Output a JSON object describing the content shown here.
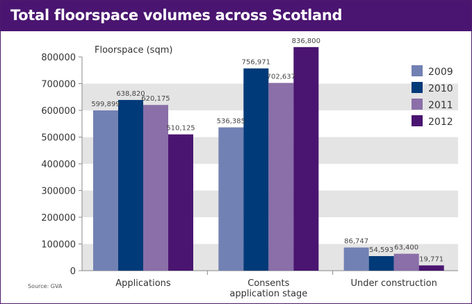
{
  "header": {
    "title": "Total floorspace volumes across Scotland"
  },
  "source": "Source: GVA",
  "chart_data": {
    "type": "bar",
    "title": "Total floorspace volumes across Scotland",
    "ylabel": "Floorspace (sqm)",
    "xlabel": "",
    "ylim": [
      0,
      800000
    ],
    "yticks": [
      0,
      100000,
      200000,
      300000,
      400000,
      500000,
      600000,
      700000,
      800000
    ],
    "ytick_labels": [
      "0",
      "100000",
      "200000",
      "300000",
      "400000",
      "500000",
      "600000",
      "700000",
      "800000"
    ],
    "categories": [
      [
        "Applications"
      ],
      [
        "Consents",
        "application stage"
      ],
      [
        "Under construction"
      ]
    ],
    "series": [
      {
        "name": "2009",
        "color": "#7281b3",
        "values": [
          599899,
          536385,
          86747
        ],
        "labels": [
          "599,899",
          "536,385",
          "86,747"
        ]
      },
      {
        "name": "2010",
        "color": "#003a78",
        "values": [
          638820,
          756971,
          54593
        ],
        "labels": [
          "638,820",
          "756,971",
          "54,593"
        ]
      },
      {
        "name": "2011",
        "color": "#8a6fa8",
        "values": [
          620175,
          702637,
          63400
        ],
        "labels": [
          "620,175",
          "702,637",
          "63,400"
        ]
      },
      {
        "name": "2012",
        "color": "#4a1570",
        "values": [
          510125,
          836800,
          19771
        ],
        "labels": [
          "510,125",
          "836,800",
          "19,771"
        ]
      }
    ],
    "grid": true,
    "legend": "top-right"
  }
}
